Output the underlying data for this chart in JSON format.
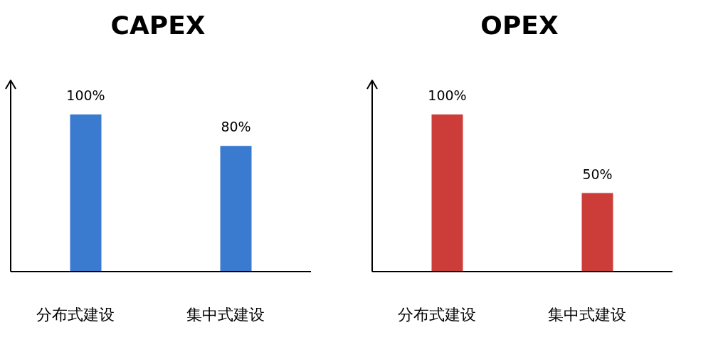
{
  "chart_data": [
    {
      "type": "bar",
      "title": "CAPEX",
      "categories": [
        "分布式建设",
        "集中式建设"
      ],
      "series": [
        {
          "color": "#3a7bd0",
          "values": [
            100,
            80
          ],
          "value_labels": [
            "100%",
            "80%"
          ]
        }
      ]
    },
    {
      "type": "bar",
      "title": "OPEX",
      "categories": [
        "分布式建设",
        "集中式建设"
      ],
      "series": [
        {
          "color": "#cc3d3a",
          "values": [
            100,
            50
          ],
          "value_labels": [
            "100%",
            "50%"
          ]
        }
      ]
    }
  ]
}
